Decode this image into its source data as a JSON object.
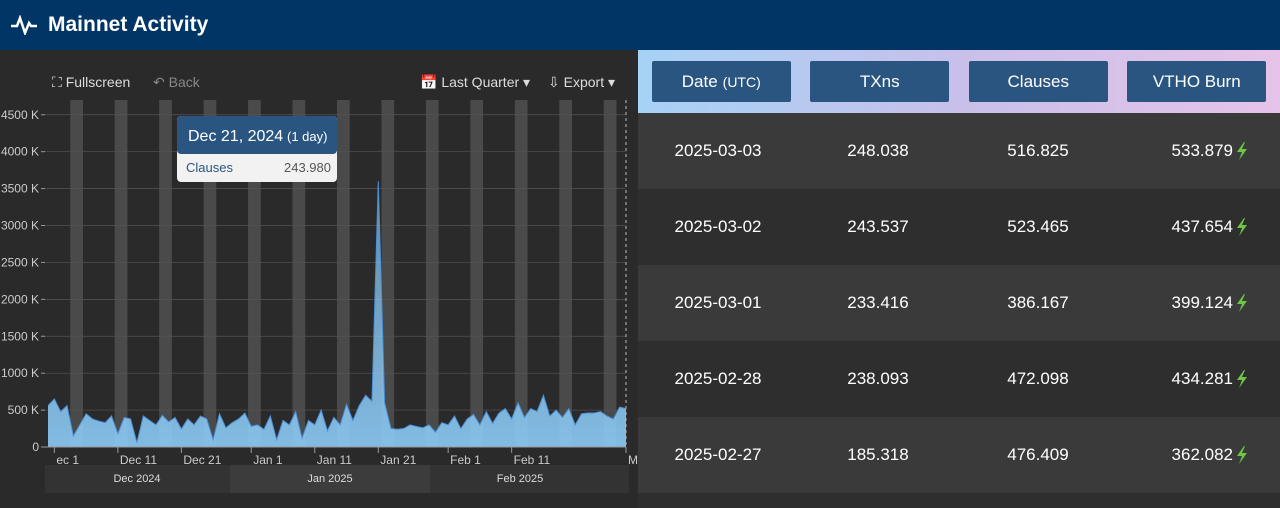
{
  "header": {
    "title": "Mainnet Activity"
  },
  "toolbar": {
    "fullscreen": "Fullscreen",
    "back": "Back",
    "range": "Last Quarter",
    "export": "Export"
  },
  "chart_data": {
    "type": "area",
    "categories": [
      null,
      "ec 1",
      null,
      null,
      null,
      null,
      null,
      null,
      null,
      null,
      null,
      "Dec 11",
      null,
      null,
      null,
      null,
      null,
      null,
      null,
      null,
      null,
      "Dec 21",
      null,
      null,
      null,
      null,
      null,
      null,
      null,
      null,
      null,
      null,
      "Jan 1",
      null,
      null,
      null,
      null,
      null,
      null,
      null,
      null,
      null,
      "Jan 11",
      null,
      null,
      null,
      null,
      null,
      null,
      null,
      null,
      null,
      "Jan 21",
      null,
      null,
      null,
      null,
      null,
      null,
      null,
      null,
      null,
      null,
      "Feb 1",
      null,
      null,
      null,
      null,
      null,
      null,
      null,
      null,
      null,
      "Feb 11",
      null,
      null,
      null,
      null,
      null,
      null,
      null,
      null,
      null,
      null,
      null,
      null,
      null,
      null,
      null,
      null,
      null,
      "Ma"
    ],
    "series": [
      {
        "name": "Clauses",
        "color": "#8ccbf7",
        "values": [
          560000,
          650000,
          480000,
          560000,
          150000,
          300000,
          450000,
          380000,
          350000,
          330000,
          420000,
          180000,
          400000,
          380000,
          60000,
          420000,
          360000,
          300000,
          430000,
          340000,
          400000,
          243980,
          380000,
          300000,
          420000,
          380000,
          100000,
          450000,
          260000,
          330000,
          380000,
          460000,
          280000,
          300000,
          240000,
          420000,
          100000,
          360000,
          300000,
          480000,
          120000,
          360000,
          300000,
          500000,
          220000,
          400000,
          300000,
          580000,
          360000,
          560000,
          700000,
          620000,
          3600000,
          600000,
          250000,
          240000,
          250000,
          300000,
          280000,
          260000,
          300000,
          200000,
          330000,
          300000,
          420000,
          250000,
          380000,
          440000,
          300000,
          480000,
          320000,
          460000,
          520000,
          380000,
          600000,
          400000,
          520000,
          480000,
          700000,
          420000,
          500000,
          400000,
          520000,
          300000,
          450000,
          460000,
          460000,
          480000,
          420000,
          380000,
          540000,
          520000
        ]
      }
    ],
    "ylim": [
      0,
      4700000
    ],
    "yticks": [
      0,
      {
        "value": 500000,
        "label": "500 K"
      },
      {
        "value": 1000000,
        "label": "1000 K"
      },
      {
        "value": 1500000,
        "label": "1500 K"
      },
      {
        "value": 2000000,
        "label": "2000 K"
      },
      {
        "value": 2500000,
        "label": "2500 K"
      },
      {
        "value": 3000000,
        "label": "3000 K"
      },
      {
        "value": 3500000,
        "label": "3500 K"
      },
      {
        "value": 4000000,
        "label": "4000 K"
      },
      {
        "value": 4500000,
        "label": "4500 K"
      }
    ],
    "grid": true,
    "tooltip": {
      "title": "Dec 21, 2024",
      "period": "(1 day)",
      "value": 243980,
      "label": "243.980"
    },
    "navigator_labels": [
      "Dec 2024",
      "Jan 2025",
      "Feb 2025"
    ]
  },
  "table": {
    "headers": [
      "Date",
      "TXns",
      "Clauses",
      "VTHO Burn"
    ],
    "date_unit": "(UTC)",
    "rows": [
      [
        "2025-03-03",
        "248.038",
        "516.825",
        "533.879"
      ],
      [
        "2025-03-02",
        "243.537",
        "523.465",
        "437.654"
      ],
      [
        "2025-03-01",
        "233.416",
        "386.167",
        "399.124"
      ],
      [
        "2025-02-28",
        "238.093",
        "472.098",
        "434.281"
      ],
      [
        "2025-02-27",
        "185.318",
        "476.409",
        "362.082"
      ]
    ]
  }
}
